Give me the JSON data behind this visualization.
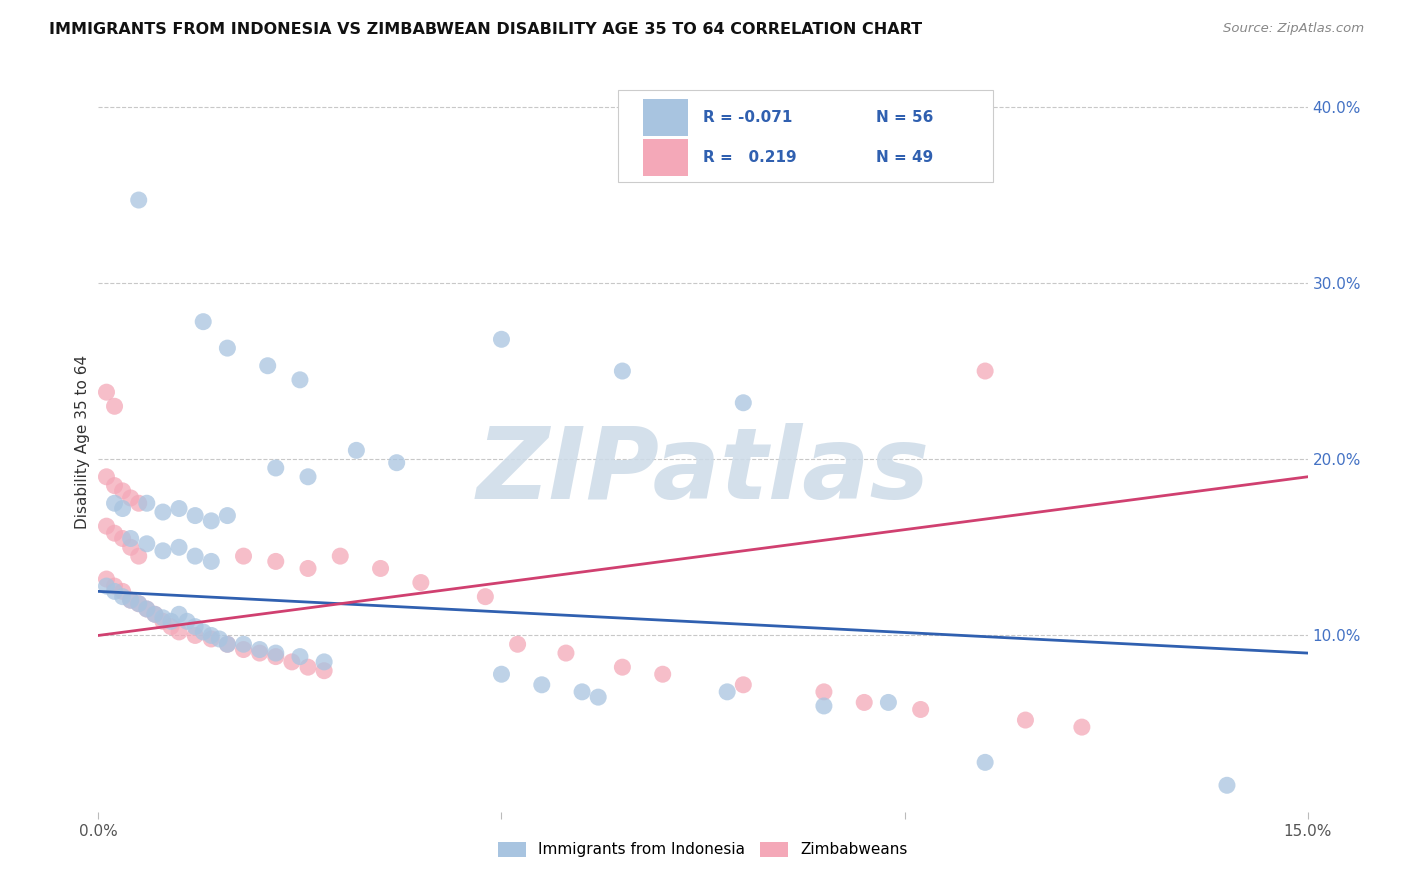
{
  "title": "IMMIGRANTS FROM INDONESIA VS ZIMBABWEAN DISABILITY AGE 35 TO 64 CORRELATION CHART",
  "source": "Source: ZipAtlas.com",
  "ylabel": "Disability Age 35 to 64",
  "xlim": [
    0.0,
    0.15
  ],
  "ylim": [
    0.0,
    0.42
  ],
  "yticks_right": [
    0.1,
    0.2,
    0.3,
    0.4
  ],
  "ytick_right_labels": [
    "10.0%",
    "20.0%",
    "30.0%",
    "40.0%"
  ],
  "legend_R1": "-0.071",
  "legend_N1": "56",
  "legend_R2": "0.219",
  "legend_N2": "49",
  "indonesia_color": "#a8c4e0",
  "zimbabwe_color": "#f4a8b8",
  "indonesia_line_color": "#3060b0",
  "zimbabwe_line_color": "#d04070",
  "background_color": "#ffffff",
  "grid_color": "#c8c8c8",
  "watermark_text": "ZIPatlas",
  "watermark_color": "#cddbe8",
  "indo_line": [
    [
      0.0,
      0.125
    ],
    [
      0.15,
      0.09
    ]
  ],
  "zimb_line": [
    [
      0.0,
      0.1
    ],
    [
      0.15,
      0.19
    ]
  ],
  "indonesia_points": [
    [
      0.005,
      0.347
    ],
    [
      0.013,
      0.278
    ],
    [
      0.016,
      0.263
    ],
    [
      0.021,
      0.253
    ],
    [
      0.025,
      0.245
    ],
    [
      0.05,
      0.268
    ],
    [
      0.065,
      0.25
    ],
    [
      0.08,
      0.232
    ],
    [
      0.032,
      0.205
    ],
    [
      0.037,
      0.198
    ],
    [
      0.022,
      0.195
    ],
    [
      0.026,
      0.19
    ],
    [
      0.002,
      0.175
    ],
    [
      0.003,
      0.172
    ],
    [
      0.006,
      0.175
    ],
    [
      0.008,
      0.17
    ],
    [
      0.01,
      0.172
    ],
    [
      0.012,
      0.168
    ],
    [
      0.014,
      0.165
    ],
    [
      0.016,
      0.168
    ],
    [
      0.004,
      0.155
    ],
    [
      0.006,
      0.152
    ],
    [
      0.008,
      0.148
    ],
    [
      0.01,
      0.15
    ],
    [
      0.012,
      0.145
    ],
    [
      0.014,
      0.142
    ],
    [
      0.001,
      0.128
    ],
    [
      0.002,
      0.125
    ],
    [
      0.003,
      0.122
    ],
    [
      0.004,
      0.12
    ],
    [
      0.005,
      0.118
    ],
    [
      0.006,
      0.115
    ],
    [
      0.007,
      0.112
    ],
    [
      0.008,
      0.11
    ],
    [
      0.009,
      0.108
    ],
    [
      0.01,
      0.112
    ],
    [
      0.011,
      0.108
    ],
    [
      0.012,
      0.105
    ],
    [
      0.013,
      0.102
    ],
    [
      0.014,
      0.1
    ],
    [
      0.015,
      0.098
    ],
    [
      0.016,
      0.095
    ],
    [
      0.018,
      0.095
    ],
    [
      0.02,
      0.092
    ],
    [
      0.022,
      0.09
    ],
    [
      0.025,
      0.088
    ],
    [
      0.028,
      0.085
    ],
    [
      0.05,
      0.078
    ],
    [
      0.055,
      0.072
    ],
    [
      0.06,
      0.068
    ],
    [
      0.062,
      0.065
    ],
    [
      0.078,
      0.068
    ],
    [
      0.09,
      0.06
    ],
    [
      0.098,
      0.062
    ],
    [
      0.11,
      0.028
    ],
    [
      0.14,
      0.015
    ]
  ],
  "zimbabwe_points": [
    [
      0.001,
      0.238
    ],
    [
      0.002,
      0.23
    ],
    [
      0.001,
      0.19
    ],
    [
      0.002,
      0.185
    ],
    [
      0.003,
      0.182
    ],
    [
      0.004,
      0.178
    ],
    [
      0.005,
      0.175
    ],
    [
      0.001,
      0.162
    ],
    [
      0.002,
      0.158
    ],
    [
      0.003,
      0.155
    ],
    [
      0.004,
      0.15
    ],
    [
      0.005,
      0.145
    ],
    [
      0.001,
      0.132
    ],
    [
      0.002,
      0.128
    ],
    [
      0.003,
      0.125
    ],
    [
      0.004,
      0.12
    ],
    [
      0.005,
      0.118
    ],
    [
      0.006,
      0.115
    ],
    [
      0.007,
      0.112
    ],
    [
      0.008,
      0.108
    ],
    [
      0.009,
      0.105
    ],
    [
      0.01,
      0.102
    ],
    [
      0.012,
      0.1
    ],
    [
      0.014,
      0.098
    ],
    [
      0.016,
      0.095
    ],
    [
      0.018,
      0.092
    ],
    [
      0.02,
      0.09
    ],
    [
      0.022,
      0.088
    ],
    [
      0.024,
      0.085
    ],
    [
      0.026,
      0.082
    ],
    [
      0.028,
      0.08
    ],
    [
      0.018,
      0.145
    ],
    [
      0.022,
      0.142
    ],
    [
      0.026,
      0.138
    ],
    [
      0.03,
      0.145
    ],
    [
      0.035,
      0.138
    ],
    [
      0.04,
      0.13
    ],
    [
      0.048,
      0.122
    ],
    [
      0.052,
      0.095
    ],
    [
      0.058,
      0.09
    ],
    [
      0.065,
      0.082
    ],
    [
      0.07,
      0.078
    ],
    [
      0.08,
      0.072
    ],
    [
      0.09,
      0.068
    ],
    [
      0.095,
      0.062
    ],
    [
      0.102,
      0.058
    ],
    [
      0.11,
      0.25
    ],
    [
      0.115,
      0.052
    ],
    [
      0.122,
      0.048
    ]
  ]
}
